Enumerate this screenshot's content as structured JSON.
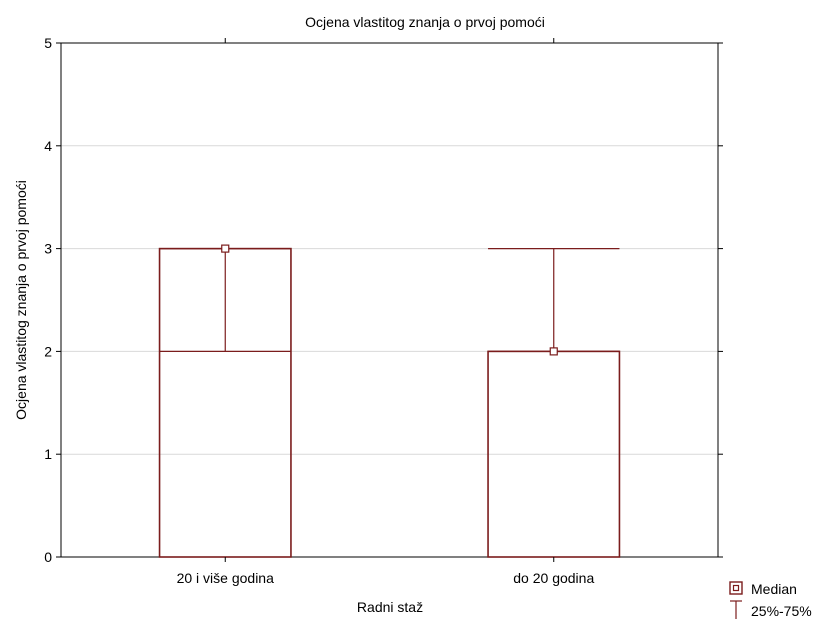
{
  "chart_data": {
    "type": "bar",
    "title": "Ocjena vlastitog znanja o prvoj pomoći",
    "xlabel": "Radni staž",
    "ylabel": "Ocjena vlastitog znanja o prvoj pomoći",
    "ylim": [
      0,
      5
    ],
    "yticks": [
      "0",
      "1",
      "2",
      "3",
      "4",
      "5"
    ],
    "grid": true,
    "legend_position": "bottom-right",
    "categories": [
      "20 i više godina",
      "do 20 godina"
    ],
    "series": [
      {
        "name": "Median",
        "values": [
          3,
          2
        ]
      },
      {
        "name": "25%-75%",
        "q1": [
          2,
          2
        ],
        "q3": [
          3,
          3
        ]
      }
    ],
    "colors": {
      "series": "#7b1c1c",
      "grid": "#d9d9d9",
      "axis": "#000000"
    }
  }
}
